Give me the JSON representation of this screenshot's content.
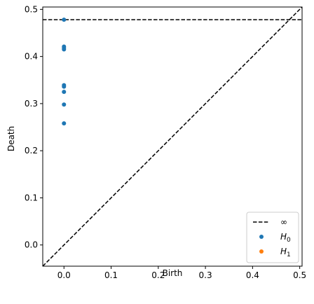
{
  "chart_data": {
    "type": "scatter",
    "title": "",
    "xlabel": "Birth",
    "ylabel": "Death",
    "xlim": [
      -0.045,
      0.505
    ],
    "ylim": [
      -0.045,
      0.505
    ],
    "xticks": [
      "0.0",
      "0.1",
      "0.2",
      "0.3",
      "0.4",
      "0.5"
    ],
    "yticks": [
      "0.0",
      "0.1",
      "0.2",
      "0.3",
      "0.4",
      "0.5"
    ],
    "infinity_line": {
      "y": 0.478,
      "label": "∞"
    },
    "diagonal": true,
    "grid": false,
    "legend_position": "bottom-right",
    "series": [
      {
        "name": "H0",
        "color": "#1f77b4",
        "points": [
          [
            0.0,
            0.478
          ],
          [
            0.0,
            0.421
          ],
          [
            0.0,
            0.418
          ],
          [
            0.0,
            0.415
          ],
          [
            0.0,
            0.339
          ],
          [
            0.0,
            0.336
          ],
          [
            0.0,
            0.325
          ],
          [
            0.0,
            0.298
          ],
          [
            0.0,
            0.258
          ]
        ]
      },
      {
        "name": "H1",
        "color": "#ff7f0e",
        "points": []
      }
    ]
  },
  "legend": {
    "infinity": "∞",
    "h0_base": "H",
    "h0_sub": "0",
    "h1_base": "H",
    "h1_sub": "1"
  }
}
